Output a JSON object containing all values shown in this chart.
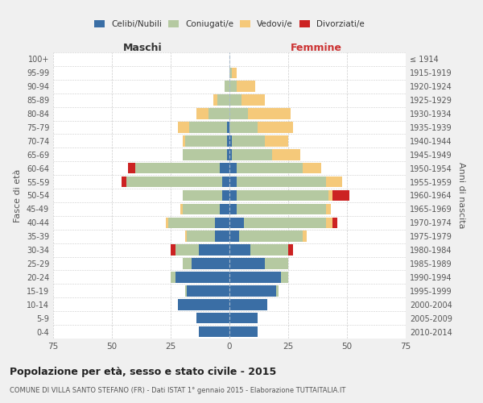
{
  "age_groups": [
    "0-4",
    "5-9",
    "10-14",
    "15-19",
    "20-24",
    "25-29",
    "30-34",
    "35-39",
    "40-44",
    "45-49",
    "50-54",
    "55-59",
    "60-64",
    "65-69",
    "70-74",
    "75-79",
    "80-84",
    "85-89",
    "90-94",
    "95-99",
    "100+"
  ],
  "birth_years": [
    "2010-2014",
    "2005-2009",
    "2000-2004",
    "1995-1999",
    "1990-1994",
    "1985-1989",
    "1980-1984",
    "1975-1979",
    "1970-1974",
    "1965-1969",
    "1960-1964",
    "1955-1959",
    "1950-1954",
    "1945-1949",
    "1940-1944",
    "1935-1939",
    "1930-1934",
    "1925-1929",
    "1920-1924",
    "1915-1919",
    "≤ 1914"
  ],
  "male": {
    "celibi": [
      13,
      14,
      22,
      18,
      23,
      16,
      13,
      6,
      6,
      4,
      3,
      3,
      4,
      1,
      1,
      1,
      0,
      0,
      0,
      0,
      0
    ],
    "coniugati": [
      0,
      0,
      0,
      1,
      2,
      4,
      10,
      12,
      20,
      16,
      17,
      41,
      36,
      19,
      18,
      16,
      9,
      5,
      2,
      0,
      0
    ],
    "vedovi": [
      0,
      0,
      0,
      0,
      0,
      0,
      0,
      1,
      1,
      1,
      0,
      0,
      0,
      0,
      1,
      5,
      5,
      2,
      0,
      0,
      0
    ],
    "divorziati": [
      0,
      0,
      0,
      0,
      0,
      0,
      2,
      0,
      0,
      0,
      0,
      2,
      3,
      0,
      0,
      0,
      0,
      0,
      0,
      0,
      0
    ]
  },
  "female": {
    "nubili": [
      12,
      12,
      16,
      20,
      22,
      15,
      9,
      4,
      6,
      3,
      3,
      3,
      3,
      1,
      1,
      0,
      0,
      0,
      0,
      0,
      0
    ],
    "coniugate": [
      0,
      0,
      0,
      1,
      3,
      10,
      16,
      27,
      35,
      38,
      39,
      38,
      28,
      17,
      14,
      12,
      8,
      5,
      3,
      1,
      0
    ],
    "vedove": [
      0,
      0,
      0,
      0,
      0,
      0,
      0,
      2,
      3,
      2,
      2,
      7,
      8,
      12,
      10,
      15,
      18,
      10,
      8,
      2,
      0
    ],
    "divorziate": [
      0,
      0,
      0,
      0,
      0,
      0,
      2,
      0,
      2,
      0,
      7,
      0,
      0,
      0,
      0,
      0,
      0,
      0,
      0,
      0,
      0
    ]
  },
  "colors": {
    "celibi": "#3a6ea5",
    "coniugati": "#b5c9a1",
    "vedovi": "#f5c97a",
    "divorziati": "#cc2222"
  },
  "xlim": 75,
  "title": "Popolazione per età, sesso e stato civile - 2015",
  "subtitle": "COMUNE DI VILLA SANTO STEFANO (FR) - Dati ISTAT 1° gennaio 2015 - Elaborazione TUTTAITALIA.IT",
  "legend_labels": [
    "Celibi/Nubili",
    "Coniugati/e",
    "Vedovi/e",
    "Divorziati/e"
  ],
  "xlabel_left": "Maschi",
  "xlabel_right": "Femmine",
  "ylabel_left": "Fasce di età",
  "ylabel_right": "Anni di nascita",
  "bg_color": "#f0f0f0",
  "plot_bg": "#ffffff",
  "grid_color": "#cccccc",
  "maschi_color": "#333333",
  "femmine_color": "#cc3333"
}
